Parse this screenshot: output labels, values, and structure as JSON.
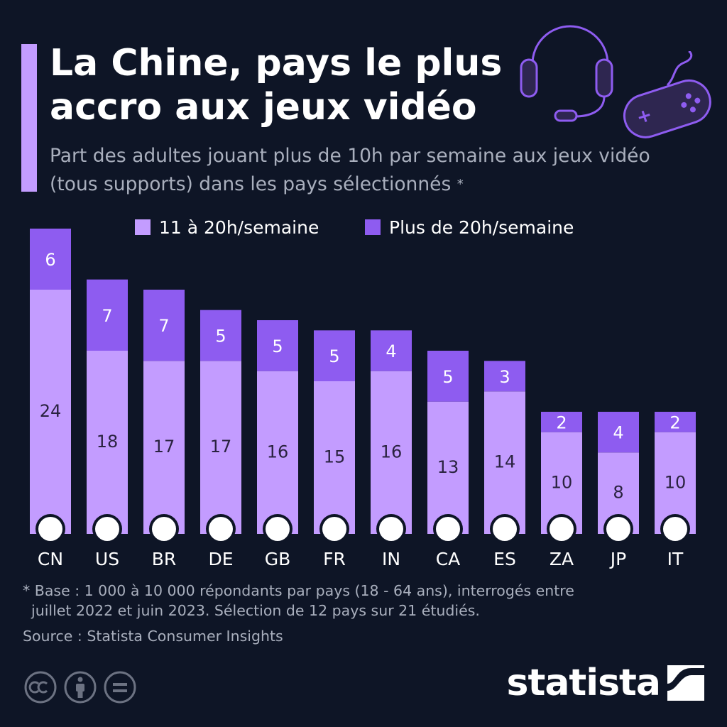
{
  "header": {
    "title": "La Chine, pays le plus accro aux jeux vidéo",
    "subtitle": "Part des adultes jouant plus de 10h par semaine aux jeux vidéo (tous supports) dans les pays sélectionnés",
    "subtitle_marker": "*"
  },
  "icons": {
    "headset": "headset-icon",
    "gamepad": "gamepad-icon"
  },
  "colors": {
    "background": "#0e1526",
    "series_light": "#c39cff",
    "series_dark": "#8e5cf0",
    "accent": "#c39cff",
    "muted_text": "#a9afbd",
    "bar_label": "#2a2240"
  },
  "chart_data": {
    "type": "bar",
    "stacked": true,
    "categories": [
      "CN",
      "US",
      "BR",
      "DE",
      "GB",
      "FR",
      "IN",
      "CA",
      "ES",
      "ZA",
      "JP",
      "IT"
    ],
    "series": [
      {
        "name": "11 à 20h/semaine",
        "values": [
          24,
          18,
          17,
          17,
          16,
          15,
          16,
          13,
          14,
          10,
          8,
          10
        ]
      },
      {
        "name": "Plus de 20h/semaine",
        "values": [
          6,
          7,
          7,
          5,
          5,
          5,
          4,
          5,
          3,
          2,
          4,
          2
        ]
      }
    ],
    "title": "",
    "xlabel": "",
    "ylabel": "",
    "ylim": [
      0,
      30
    ],
    "grid": false,
    "legend": "top"
  },
  "footer": {
    "note_line1": "* Base : 1 000 à 10 000 répondants par pays (18 - 64 ans), interrogés entre",
    "note_line2": "juillet 2022 et juin 2023. Sélection de 12 pays sur 21 étudiés.",
    "source": "Source : Statista Consumer Insights",
    "brand": "statista",
    "license_icons": [
      "creative-commons-icon",
      "attribution-icon",
      "no-derivatives-icon"
    ]
  }
}
